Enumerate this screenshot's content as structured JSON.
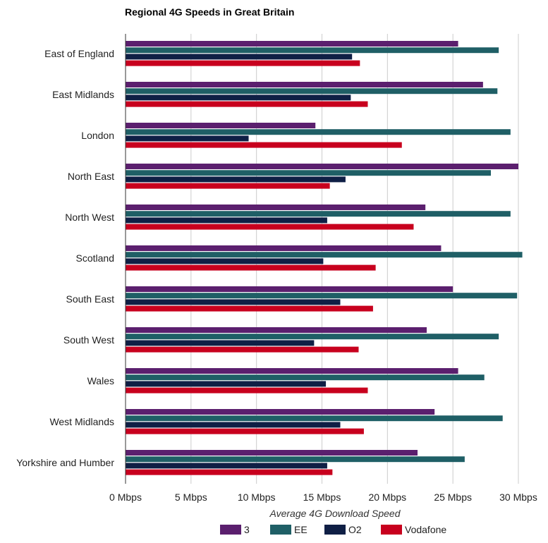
{
  "chart_data": {
    "type": "bar",
    "orientation": "horizontal",
    "title": "Regional 4G Speeds in Great Britain",
    "xlabel": "Average 4G Download Speed",
    "ylabel": "",
    "xlim": [
      0,
      30
    ],
    "x_ticks": [
      0,
      5,
      10,
      15,
      20,
      25,
      30
    ],
    "x_tick_labels": [
      "0 Mbps",
      "5 Mbps",
      "10 Mbps",
      "15 Mbps",
      "20 Mbps",
      "25 Mbps",
      "30 Mbps"
    ],
    "grid": true,
    "legend_position": "bottom",
    "categories": [
      "East of England",
      "East Midlands",
      "London",
      "North East",
      "North West",
      "Scotland",
      "South East",
      "South West",
      "Wales",
      "West Midlands",
      "Yorkshire and Humber"
    ],
    "series": [
      {
        "name": "3",
        "color": "#5b1f6e",
        "values": [
          25.4,
          27.3,
          14.5,
          30.0,
          22.9,
          24.1,
          25.0,
          23.0,
          25.4,
          23.6,
          22.3
        ]
      },
      {
        "name": "EE",
        "color": "#1f5f66",
        "values": [
          28.5,
          28.4,
          29.4,
          27.9,
          29.4,
          30.3,
          29.9,
          28.5,
          27.4,
          28.8,
          25.9
        ]
      },
      {
        "name": "O2",
        "color": "#0f1f45",
        "values": [
          17.3,
          17.2,
          9.4,
          16.8,
          15.4,
          15.1,
          16.4,
          14.4,
          15.3,
          16.4,
          15.4
        ]
      },
      {
        "name": "Vodafone",
        "color": "#c8001e",
        "values": [
          17.9,
          18.5,
          21.1,
          15.6,
          22.0,
          19.1,
          18.9,
          17.8,
          18.5,
          18.2,
          15.8
        ]
      }
    ]
  }
}
